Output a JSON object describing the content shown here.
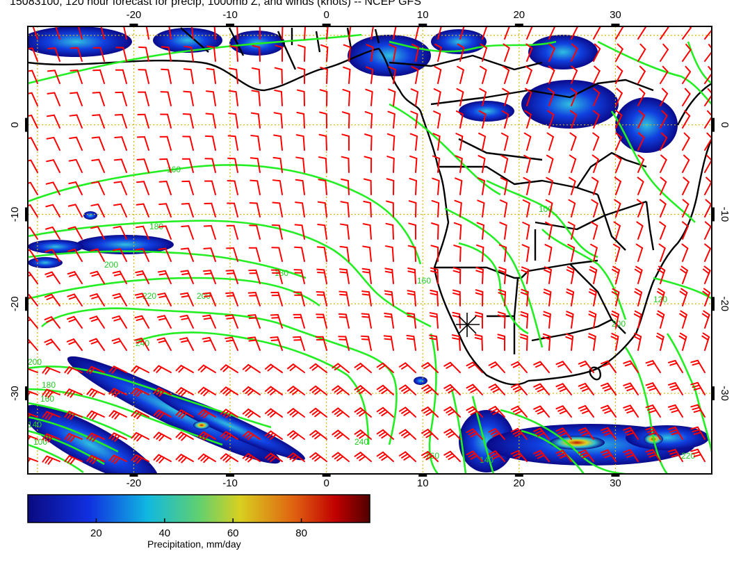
{
  "title": "15083100, 120 hour forecast for precip, 1000mb Z, and winds (knots) -- NCEP GFS",
  "map": {
    "lon_range": [
      -31,
      40
    ],
    "lat_range": [
      -39,
      11
    ],
    "lon_ticks": [
      "-20",
      "-10",
      "0",
      "10",
      "20",
      "30"
    ],
    "lat_ticks": [
      "0",
      "-10",
      "-20",
      "-30"
    ],
    "grid": "dotted",
    "grid_color": "#d4b300",
    "coast_color": "#000000",
    "contour_color": "#22ee22",
    "wind_barb_color": "#ff0000",
    "contour_labels": [
      "160",
      "180",
      "200",
      "220",
      "240",
      "200",
      "180",
      "160",
      "140",
      "100",
      "100",
      "120",
      "160",
      "180",
      "200",
      "200",
      "140",
      "160",
      "240",
      "220"
    ],
    "precip_scale_colors": [
      "#0a0a8a",
      "#1040e0",
      "#10b0d8",
      "#60d060",
      "#d8d020",
      "#e07010",
      "#c00000",
      "#600000"
    ]
  },
  "colorbar": {
    "ticks": [
      "20",
      "40",
      "60",
      "80"
    ],
    "range": [
      0,
      100
    ],
    "label": "Precipitation, mm/day"
  }
}
